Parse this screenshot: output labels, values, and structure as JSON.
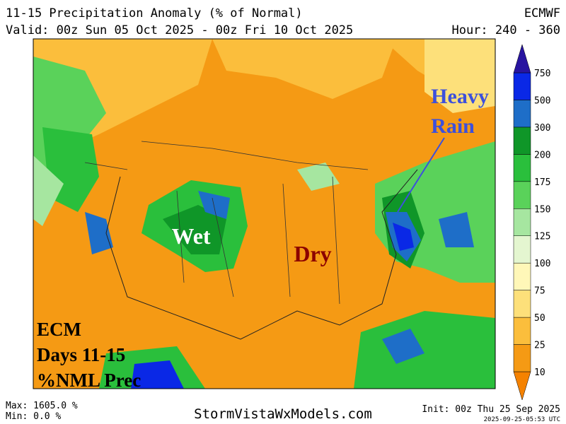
{
  "header": {
    "title": "11-15 Precipitation Anomaly (% of Normal)",
    "model": "ECMWF",
    "valid": "Valid: 00z Sun 05 Oct 2025 - 00z Fri 10 Oct 2025",
    "hour": "Hour: 240 - 360"
  },
  "colorbar": {
    "labels": [
      "10",
      "25",
      "50",
      "75",
      "100",
      "125",
      "150",
      "175",
      "200",
      "300",
      "500",
      "750"
    ],
    "colors": [
      "#f58200",
      "#f59a14",
      "#fbbe3c",
      "#fde07a",
      "#fff7b8",
      "#e4f6d0",
      "#a6e6a0",
      "#5ad25a",
      "#2abf3c",
      "#0f9628",
      "#1e6ec8",
      "#0a28e6",
      "#2814a0"
    ]
  },
  "annotations": {
    "heavy_rain": [
      "Heavy",
      "Rain"
    ],
    "wet": "Wet",
    "dry": "Dry",
    "label": [
      "ECM",
      "Days 11-15",
      "%NML Prec"
    ]
  },
  "footer": {
    "max": "Max: 1605.0 %",
    "min": "Min: 0.0 %",
    "site": "StormVistaWxModels.com",
    "init": "Init: 00z Thu 25 Sep 2025",
    "stamp": "2025-09-25-05:53 UTC"
  }
}
